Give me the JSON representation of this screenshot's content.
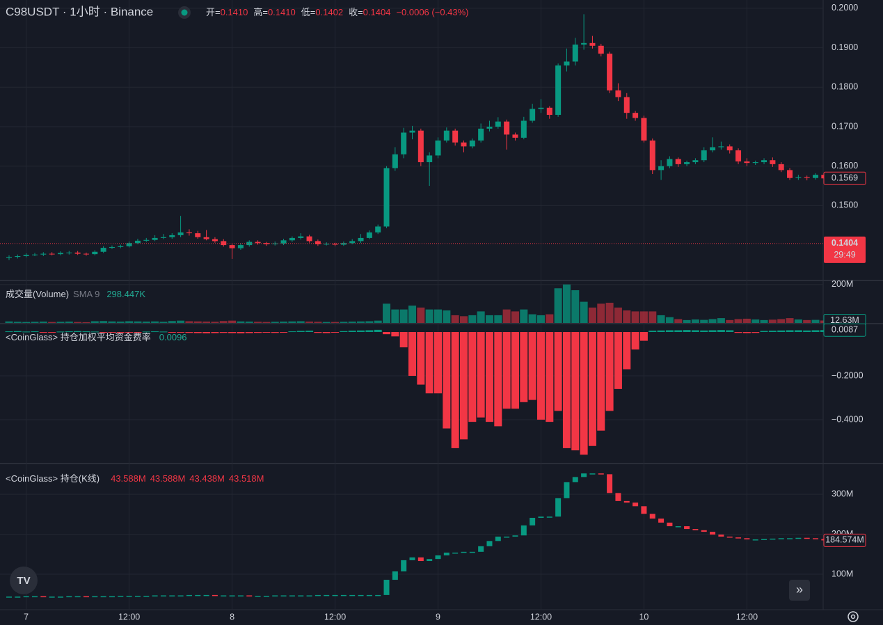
{
  "chart_data": [
    {
      "type": "candlestick",
      "title": "C98USDT · 1小时 · Binance",
      "ohlc_legend": [
        {
          "name": "开=",
          "text": "0.1410"
        },
        {
          "name": "高=",
          "text": "0.1410"
        },
        {
          "name": "低=",
          "text": "0.1402"
        },
        {
          "name": "收=",
          "text": "0.1404"
        }
      ],
      "change": "−0.0006 (−0.43%)",
      "up_color": "#089981",
      "down_color": "#f23645",
      "categories": [
        null,
        null,
        "7",
        null,
        null,
        null,
        null,
        null,
        null,
        null,
        null,
        null,
        null,
        null,
        "12:00",
        null,
        null,
        null,
        null,
        null,
        null,
        null,
        null,
        null,
        null,
        null,
        "8",
        null,
        null,
        null,
        null,
        null,
        null,
        null,
        null,
        null,
        null,
        null,
        "12:00",
        null,
        null,
        null,
        null,
        null,
        null,
        null,
        null,
        null,
        null,
        null,
        "9",
        null,
        null,
        null,
        null,
        null,
        null,
        null,
        null,
        null,
        null,
        null,
        "12:00",
        null,
        null,
        null,
        null,
        null,
        null,
        null,
        null,
        null,
        null,
        null,
        "10",
        null,
        null,
        null,
        null,
        null,
        null,
        null,
        null,
        null,
        null,
        null,
        "12:00",
        null,
        null,
        null,
        null,
        null,
        null,
        null,
        null,
        null
      ],
      "open": [
        0.1368,
        0.137,
        0.1372,
        0.1375,
        0.1376,
        0.1378,
        0.1377,
        0.138,
        0.1381,
        0.1378,
        0.1377,
        0.1383,
        0.1393,
        0.1395,
        0.1397,
        0.1405,
        0.1411,
        0.1413,
        0.1418,
        0.142,
        0.1425,
        0.1432,
        0.143,
        0.142,
        0.1415,
        0.141,
        0.14,
        0.1392,
        0.14,
        0.1408,
        0.1405,
        0.1402,
        0.1404,
        0.1412,
        0.1418,
        0.1422,
        0.141,
        0.1402,
        0.1403,
        0.1401,
        0.1405,
        0.141,
        0.1418,
        0.1432,
        0.1447,
        0.1595,
        0.163,
        0.1685,
        0.169,
        0.161,
        0.1627,
        0.1665,
        0.169,
        0.166,
        0.165,
        0.1665,
        0.1695,
        0.17,
        0.1713,
        0.168,
        0.1672,
        0.1715,
        0.1745,
        0.1748,
        0.173,
        0.1855,
        0.1865,
        0.1908,
        0.1912,
        0.1905,
        0.1885,
        0.1792,
        0.1775,
        0.1735,
        0.1722,
        0.1665,
        0.159,
        0.16,
        0.1618,
        0.1605,
        0.161,
        0.1615,
        0.164,
        0.1648,
        0.165,
        0.164,
        0.1612,
        0.1608,
        0.161,
        0.1615,
        0.1605,
        0.159,
        0.157,
        0.1572,
        0.157,
        0.1578
      ],
      "high": [
        0.1374,
        0.1376,
        0.1379,
        0.138,
        0.1382,
        0.1382,
        0.1384,
        0.1385,
        0.1385,
        0.1381,
        0.1387,
        0.1397,
        0.1399,
        0.1401,
        0.1409,
        0.1416,
        0.1418,
        0.1425,
        0.1428,
        0.143,
        0.1474,
        0.144,
        0.1436,
        0.1438,
        0.142,
        0.1415,
        0.1404,
        0.1405,
        0.1412,
        0.1412,
        0.1408,
        0.1409,
        0.1416,
        0.1422,
        0.143,
        0.1426,
        0.1414,
        0.1407,
        0.1406,
        0.1409,
        0.1415,
        0.1428,
        0.1437,
        0.1452,
        0.16,
        0.1648,
        0.1697,
        0.1702,
        0.1695,
        0.1635,
        0.1673,
        0.1698,
        0.1695,
        0.1665,
        0.167,
        0.1708,
        0.1715,
        0.1724,
        0.1718,
        0.1685,
        0.1725,
        0.1758,
        0.177,
        0.1752,
        0.186,
        0.1898,
        0.1925,
        0.1985,
        0.193,
        0.191,
        0.189,
        0.181,
        0.1785,
        0.174,
        0.1728,
        0.167,
        0.1615,
        0.1625,
        0.1622,
        0.1614,
        0.162,
        0.1648,
        0.1673,
        0.1662,
        0.1655,
        0.1645,
        0.162,
        0.1614,
        0.162,
        0.1622,
        0.161,
        0.1595,
        0.1578,
        0.1576,
        0.1582,
        0.1581
      ],
      "low": [
        0.1362,
        0.1366,
        0.1369,
        0.1372,
        0.1372,
        0.1374,
        0.1374,
        0.1376,
        0.1375,
        0.1373,
        0.1374,
        0.138,
        0.139,
        0.1392,
        0.1394,
        0.1402,
        0.1408,
        0.141,
        0.1415,
        0.1416,
        0.142,
        0.1424,
        0.1416,
        0.1412,
        0.1406,
        0.1396,
        0.1365,
        0.1388,
        0.1396,
        0.1401,
        0.1398,
        0.1399,
        0.14,
        0.1408,
        0.1414,
        0.1406,
        0.1398,
        0.1399,
        0.1397,
        0.1398,
        0.1402,
        0.1405,
        0.1415,
        0.1428,
        0.1443,
        0.1588,
        0.162,
        0.1668,
        0.16,
        0.155,
        0.162,
        0.166,
        0.1652,
        0.1635,
        0.1645,
        0.166,
        0.1688,
        0.1695,
        0.1642,
        0.1665,
        0.1668,
        0.171,
        0.1735,
        0.172,
        0.1725,
        0.184,
        0.1855,
        0.1895,
        0.1898,
        0.1878,
        0.1785,
        0.1765,
        0.172,
        0.1715,
        0.166,
        0.158,
        0.1565,
        0.1595,
        0.1598,
        0.16,
        0.1605,
        0.161,
        0.1635,
        0.1642,
        0.1632,
        0.1605,
        0.16,
        0.1603,
        0.1605,
        0.1598,
        0.1585,
        0.1565,
        0.1565,
        0.1564,
        0.1566,
        0.1556
      ],
      "close": [
        0.137,
        0.1372,
        0.1375,
        0.1376,
        0.1378,
        0.1377,
        0.138,
        0.1381,
        0.1378,
        0.1377,
        0.1383,
        0.1393,
        0.1395,
        0.1397,
        0.1405,
        0.1411,
        0.1413,
        0.1418,
        0.142,
        0.1425,
        0.1432,
        0.143,
        0.142,
        0.1415,
        0.141,
        0.14,
        0.1392,
        0.14,
        0.1408,
        0.1405,
        0.1402,
        0.1404,
        0.1412,
        0.1418,
        0.1422,
        0.141,
        0.1402,
        0.1403,
        0.1401,
        0.1405,
        0.141,
        0.1418,
        0.1432,
        0.1447,
        0.1595,
        0.163,
        0.1685,
        0.169,
        0.161,
        0.1627,
        0.1665,
        0.169,
        0.166,
        0.165,
        0.1665,
        0.1695,
        0.17,
        0.1713,
        0.168,
        0.1672,
        0.1715,
        0.1745,
        0.1748,
        0.173,
        0.1855,
        0.1865,
        0.1908,
        0.1912,
        0.1905,
        0.1885,
        0.1792,
        0.1775,
        0.1735,
        0.1722,
        0.1665,
        0.159,
        0.16,
        0.1618,
        0.1605,
        0.161,
        0.1615,
        0.164,
        0.1648,
        0.165,
        0.164,
        0.1612,
        0.1608,
        0.161,
        0.1615,
        0.1605,
        0.159,
        0.157,
        0.1572,
        0.157,
        0.1578,
        0.1569
      ],
      "ylim": [
        0.1312,
        0.2021
      ],
      "yticks": [
        {
          "value": 0.15,
          "label": "0.1500"
        },
        {
          "value": 0.16,
          "label": "0.1600"
        },
        {
          "value": 0.17,
          "label": "0.1700"
        },
        {
          "value": 0.18,
          "label": "0.1800"
        },
        {
          "value": 0.19,
          "label": "0.1900"
        },
        {
          "value": 0.2,
          "label": "0.2000"
        }
      ],
      "last_price": {
        "value": 0.1569,
        "label": "0.1569"
      },
      "price_line": {
        "value": 0.1404,
        "label": "0.1404",
        "countdown": "29:49"
      }
    },
    {
      "type": "bar",
      "title": "成交量(Volume)",
      "sma_label": "SMA 9",
      "sma_value": "298.447K",
      "values": [
        8,
        6,
        5,
        6,
        7,
        5,
        6,
        7,
        5,
        4,
        9,
        10,
        8,
        7,
        9,
        8,
        7,
        8,
        6,
        10,
        12,
        9,
        8,
        7,
        6,
        10,
        12,
        8,
        7,
        6,
        5,
        6,
        7,
        8,
        9,
        7,
        6,
        5,
        5,
        6,
        7,
        8,
        9,
        12,
        100,
        70,
        70,
        90,
        80,
        70,
        70,
        65,
        40,
        35,
        40,
        60,
        40,
        40,
        70,
        60,
        70,
        45,
        40,
        45,
        180,
        200,
        170,
        110,
        80,
        100,
        105,
        80,
        65,
        60,
        60,
        60,
        40,
        30,
        20,
        15,
        18,
        16,
        20,
        25,
        15,
        20,
        22,
        18,
        15,
        17,
        20,
        25,
        18,
        15,
        16,
        12.63
      ],
      "ylim": [
        0,
        217
      ],
      "yticks": [
        {
          "value": 200,
          "label": "200M"
        }
      ],
      "last_value": {
        "value": 12.63,
        "label": "12.63M"
      }
    },
    {
      "type": "bar",
      "title": "<CoinGlass> 持仓加权平均资金费率",
      "legend_value": "0.0096",
      "values": [
        0.003,
        0.004,
        0.002,
        0.003,
        -0.002,
        -0.003,
        0.002,
        0.003,
        0.004,
        0.003,
        0.002,
        -0.002,
        -0.003,
        -0.004,
        -0.003,
        -0.002,
        0.002,
        0.003,
        0.002,
        -0.002,
        -0.003,
        -0.004,
        -0.005,
        -0.006,
        -0.005,
        -0.004,
        -0.005,
        -0.006,
        -0.005,
        -0.004,
        -0.003,
        -0.004,
        -0.003,
        0.003,
        0.005,
        0.006,
        -0.004,
        -0.005,
        -0.003,
        0.004,
        0.006,
        0.007,
        0.008,
        0.01,
        -0.01,
        -0.02,
        -0.07,
        -0.2,
        -0.24,
        -0.28,
        -0.28,
        -0.44,
        -0.53,
        -0.49,
        -0.41,
        -0.39,
        -0.41,
        -0.43,
        -0.35,
        -0.35,
        -0.32,
        -0.31,
        -0.4,
        -0.41,
        -0.36,
        -0.53,
        -0.54,
        -0.56,
        -0.52,
        -0.45,
        -0.36,
        -0.26,
        -0.17,
        -0.08,
        -0.04,
        0.006,
        0.007,
        0.008,
        0.008,
        0.009,
        0.008,
        0.007,
        0.008,
        0.009,
        0.008,
        -0.004,
        -0.005,
        -0.004,
        0.005,
        0.006,
        0.007,
        0.008,
        0.008,
        0.007,
        0.008,
        0.0087
      ],
      "ylim": [
        -0.597,
        0.035
      ],
      "yticks": [
        {
          "value": -0.2,
          "label": "−0.2000"
        },
        {
          "value": -0.4,
          "label": "−0.4000"
        }
      ],
      "last_value": {
        "value": 0.0087,
        "label": "0.0087"
      }
    },
    {
      "type": "candlestick-close",
      "title": "<CoinGlass> 持仓(K线)",
      "ohlc_legend": [
        "43.588M",
        "43.588M",
        "43.438M",
        "43.518M"
      ],
      "values": [
        44,
        44,
        45,
        45,
        44,
        44,
        44,
        45,
        45,
        44,
        45,
        45,
        45,
        46,
        46,
        46,
        46,
        47,
        47,
        47,
        47,
        48,
        48,
        48,
        47,
        47,
        47,
        47,
        46,
        46,
        46,
        47,
        47,
        47,
        47,
        47,
        48,
        48,
        48,
        48,
        48,
        48,
        48,
        48,
        86,
        107,
        135,
        142,
        133,
        138,
        147,
        154,
        154,
        156,
        156,
        170,
        183,
        194,
        194,
        197,
        222,
        241,
        244,
        244,
        290,
        330,
        343,
        352,
        352,
        350,
        303,
        283,
        279,
        270,
        251,
        239,
        229,
        220,
        220,
        213,
        210,
        206,
        199,
        194,
        192,
        190,
        187,
        187,
        188,
        189,
        190,
        190,
        191,
        190,
        188,
        184.574
      ],
      "ylim": [
        13,
        375
      ],
      "yticks": [
        {
          "value": 100,
          "label": "100M"
        },
        {
          "value": 200,
          "label": "200M"
        },
        {
          "value": 300,
          "label": "300M"
        }
      ],
      "last_value": {
        "value": 184.574,
        "label": "184.574M"
      }
    }
  ]
}
